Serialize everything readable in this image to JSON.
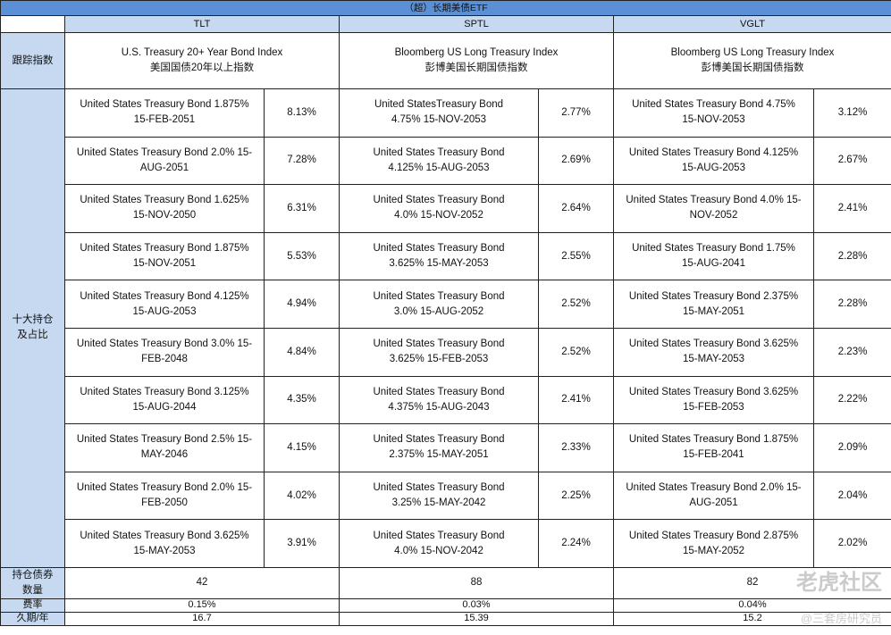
{
  "title": "（超）长期美债ETF",
  "funds": [
    "TLT",
    "SPTL",
    "VGLT"
  ],
  "row_labels": {
    "index": "跟踪指数",
    "holdings": "十大持仓\n及占比",
    "count": "持仓债券\n数量",
    "fee": "费率",
    "duration": "久期/年"
  },
  "index": [
    "U.S. Treasury 20+ Year Bond Index\n美国国债20年以上指数",
    "Bloomberg US Long Treasury Index\n彭博美国长期国债指数",
    "Bloomberg US Long Treasury Index\n彭博美国长期国债指数"
  ],
  "holdings": [
    [
      {
        "name": "United States Treasury Bond 1.875%\n15-FEB-2051",
        "weight": "8.13%"
      },
      {
        "name": "United States Treasury Bond 2.0% 15-\nAUG-2051",
        "weight": "7.28%"
      },
      {
        "name": "United States Treasury Bond 1.625%\n15-NOV-2050",
        "weight": "6.31%"
      },
      {
        "name": "United States Treasury Bond 1.875%\n15-NOV-2051",
        "weight": "5.53%"
      },
      {
        "name": "United States Treasury Bond 4.125%\n15-AUG-2053",
        "weight": "4.94%"
      },
      {
        "name": "United States Treasury Bond 3.0% 15-\nFEB-2048",
        "weight": "4.84%"
      },
      {
        "name": "United States Treasury Bond 3.125%\n15-AUG-2044",
        "weight": "4.35%"
      },
      {
        "name": "United States Treasury Bond 2.5% 15-\nMAY-2046",
        "weight": "4.15%"
      },
      {
        "name": "United States Treasury Bond 2.0% 15-\nFEB-2050",
        "weight": "4.02%"
      },
      {
        "name": "United States Treasury Bond 3.625%\n15-MAY-2053",
        "weight": "3.91%"
      }
    ],
    [
      {
        "name": "United StatesTreasury Bond\n4.75% 15-NOV-2053",
        "weight": "2.77%"
      },
      {
        "name": "United States Treasury Bond\n4.125% 15-AUG-2053",
        "weight": "2.69%"
      },
      {
        "name": "United States Treasury Bond\n4.0% 15-NOV-2052",
        "weight": "2.64%"
      },
      {
        "name": "United States Treasury Bond\n3.625% 15-MAY-2053",
        "weight": "2.55%"
      },
      {
        "name": "United States Treasury Bond\n3.0% 15-AUG-2052",
        "weight": "2.52%"
      },
      {
        "name": "United States Treasury Bond\n3.625% 15-FEB-2053",
        "weight": "2.52%"
      },
      {
        "name": "United States Treasury Bond\n4.375% 15-AUG-2043",
        "weight": "2.41%"
      },
      {
        "name": "United States Treasury Bond\n2.375% 15-MAY-2051",
        "weight": "2.33%"
      },
      {
        "name": "United States Treasury Bond\n3.25% 15-MAY-2042",
        "weight": "2.25%"
      },
      {
        "name": "United States Treasury Bond\n4.0% 15-NOV-2042",
        "weight": "2.24%"
      }
    ],
    [
      {
        "name": "United States Treasury Bond 4.75%\n15-NOV-2053",
        "weight": "3.12%"
      },
      {
        "name": "United States Treasury Bond 4.125%\n15-AUG-2053",
        "weight": "2.67%"
      },
      {
        "name": "United States Treasury Bond 4.0% 15-\nNOV-2052",
        "weight": "2.41%"
      },
      {
        "name": "United States Treasury Bond 1.75%\n15-AUG-2041",
        "weight": "2.28%"
      },
      {
        "name": "United States Treasury Bond 2.375%\n15-MAY-2051",
        "weight": "2.28%"
      },
      {
        "name": "United States Treasury Bond 3.625%\n15-MAY-2053",
        "weight": "2.23%"
      },
      {
        "name": "United States Treasury Bond 3.625%\n15-FEB-2053",
        "weight": "2.22%"
      },
      {
        "name": "United States Treasury Bond 1.875%\n15-FEB-2041",
        "weight": "2.09%"
      },
      {
        "name": "United States Treasury Bond 2.0% 15-\nAUG-2051",
        "weight": "2.04%"
      },
      {
        "name": "United States Treasury Bond 2.875%\n15-MAY-2052",
        "weight": "2.02%"
      }
    ]
  ],
  "count": [
    "42",
    "88",
    "82"
  ],
  "fee": [
    "0.15%",
    "0.03%",
    "0.04%"
  ],
  "duration": [
    "16.7",
    "15.39",
    "15.2"
  ],
  "watermark": {
    "logo": "老虎社区",
    "author": "@三套房研究员"
  },
  "colors": {
    "title_bg": "#5b8fd6",
    "header_bg": "#c6d9f0"
  }
}
